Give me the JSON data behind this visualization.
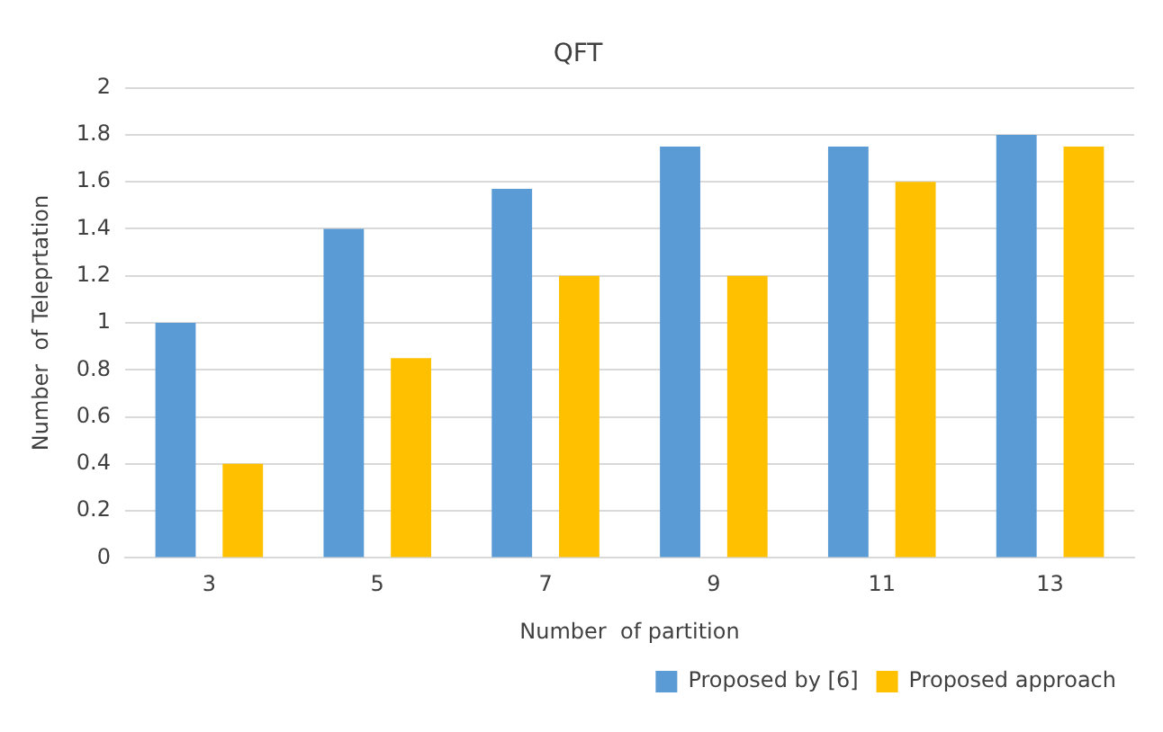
{
  "chart_data": {
    "type": "bar",
    "title": "QFT",
    "xlabel": "Number  of partition",
    "ylabel": "Number  of Teleprtation",
    "categories": [
      "3",
      "5",
      "7",
      "9",
      "11",
      "13"
    ],
    "series": [
      {
        "name": "Proposed by [6]",
        "color": "#5b9bd5",
        "values": [
          1,
          1.4,
          1.57,
          1.75,
          1.75,
          1.8
        ]
      },
      {
        "name": "Proposed approach",
        "color": "#ffc000",
        "values": [
          0.4,
          0.85,
          1.2,
          1.2,
          1.6,
          1.75
        ]
      }
    ],
    "ylim": [
      0,
      2
    ],
    "yticks": [
      0,
      0.2,
      0.4,
      0.6,
      0.8,
      1,
      1.2,
      1.4,
      1.6,
      1.8,
      2
    ],
    "grid": "y",
    "legend": "bottom right"
  }
}
